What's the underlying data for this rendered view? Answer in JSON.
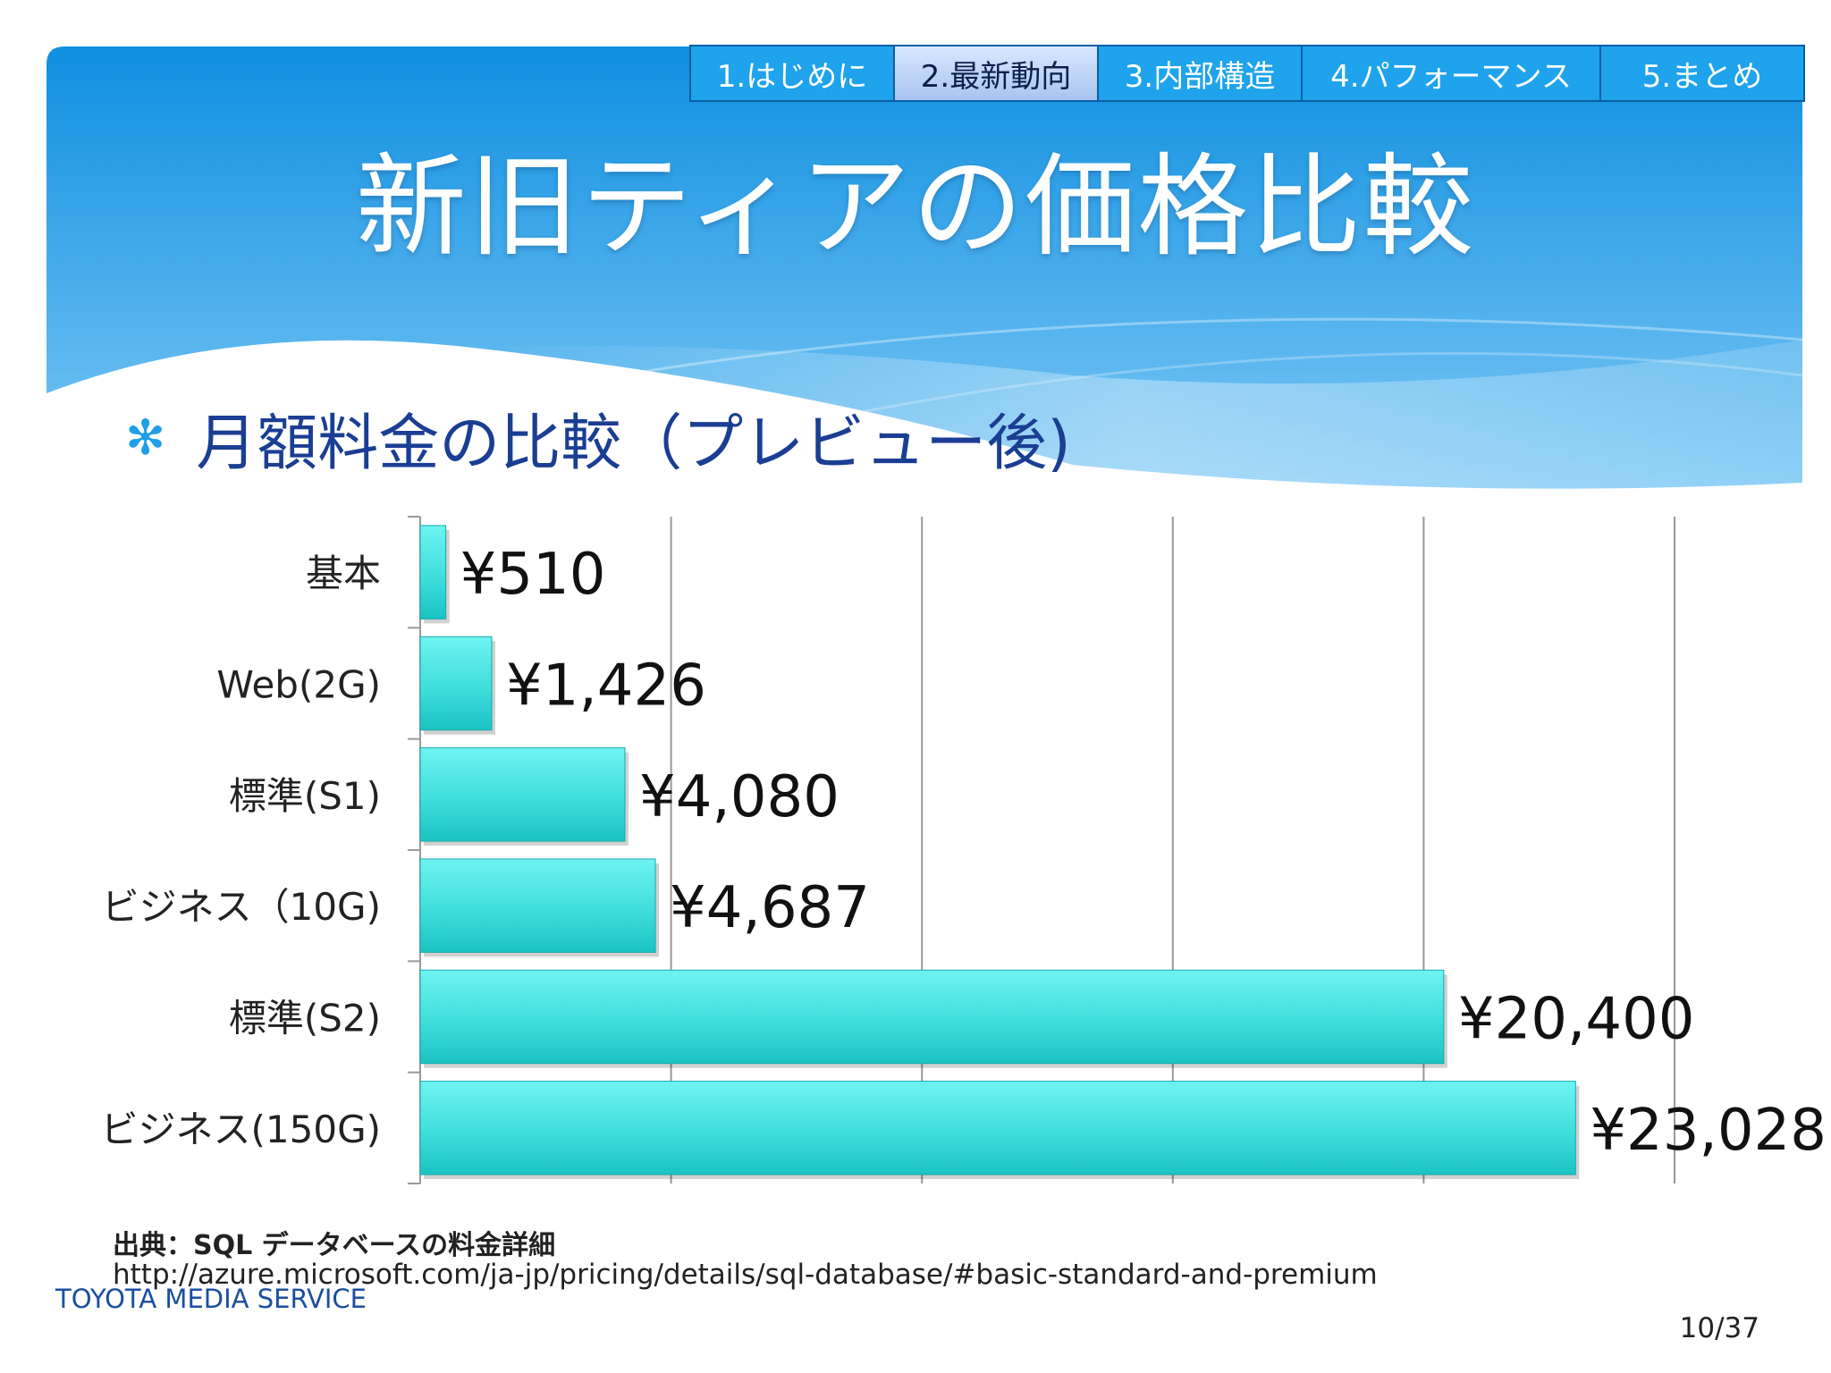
{
  "tabs": [
    {
      "label": "1.はじめに",
      "active": false
    },
    {
      "label": "2.最新動向",
      "active": true
    },
    {
      "label": "3.内部構造",
      "active": false
    },
    {
      "label": "4.パフォーマンス",
      "active": false
    },
    {
      "label": "5.まとめ",
      "active": false
    }
  ],
  "slide": {
    "title": "新旧ティアの価格比較",
    "bullet": "月額料金の比較（プレビュー後)"
  },
  "colors": {
    "banner_top": "#0f8fe0",
    "banner_bottom": "#7cc8f5",
    "bar_light": "#6ff3f2",
    "bar_dark": "#1bc3c3",
    "bullet_text": "#1a3e93"
  },
  "chart_data": {
    "type": "bar",
    "orientation": "horizontal",
    "categories": [
      "基本",
      "Web(2G)",
      "標準(S1)",
      "ビジネス（10G)",
      "標準(S2)",
      "ビジネス(150G)"
    ],
    "values": [
      510,
      1426,
      4080,
      4687,
      20400,
      23028
    ],
    "value_labels": [
      "¥510",
      "¥1,426",
      "¥4,080",
      "¥4,687",
      "¥20,400",
      "¥23,028"
    ],
    "xlim": [
      0,
      25000
    ],
    "grid": true,
    "legend": "none"
  },
  "source": {
    "title": "出典：SQL データベースの料金詳細",
    "url": "http://azure.microsoft.com/ja-jp/pricing/details/sql-database/#basic-standard-and-premium"
  },
  "footer": {
    "company": "TOYOTA MEDIA SERVICE",
    "page": "10/37"
  }
}
